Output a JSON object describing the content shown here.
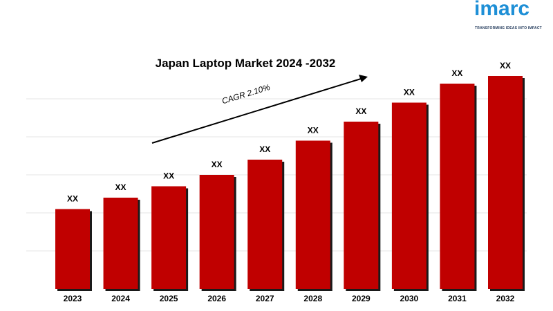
{
  "chart_data": {
    "type": "bar",
    "title": "Japan Laptop Market 2024 -2032",
    "annotation": "CAGR 2.10%",
    "categories": [
      "2023",
      "2024",
      "2025",
      "2026",
      "2027",
      "2028",
      "2029",
      "2030",
      "2031",
      "2032"
    ],
    "values": [
      21,
      24,
      27,
      30,
      34,
      39,
      44,
      49,
      54,
      56
    ],
    "data_labels": [
      "XX",
      "XX",
      "XX",
      "XX",
      "XX",
      "XX",
      "XX",
      "XX",
      "XX",
      "XX"
    ],
    "ylim": [
      0,
      60
    ],
    "y_axis_shown": false,
    "grid": true,
    "bar_color": "#c00000",
    "shadow_color": "#1a1a1a",
    "grid_color": "#e6e6e6"
  },
  "brand": {
    "name": "imarc",
    "tagline": "TRANSFORMING IDEAS INTO IMPACT",
    "color": "#1e8fd6"
  }
}
